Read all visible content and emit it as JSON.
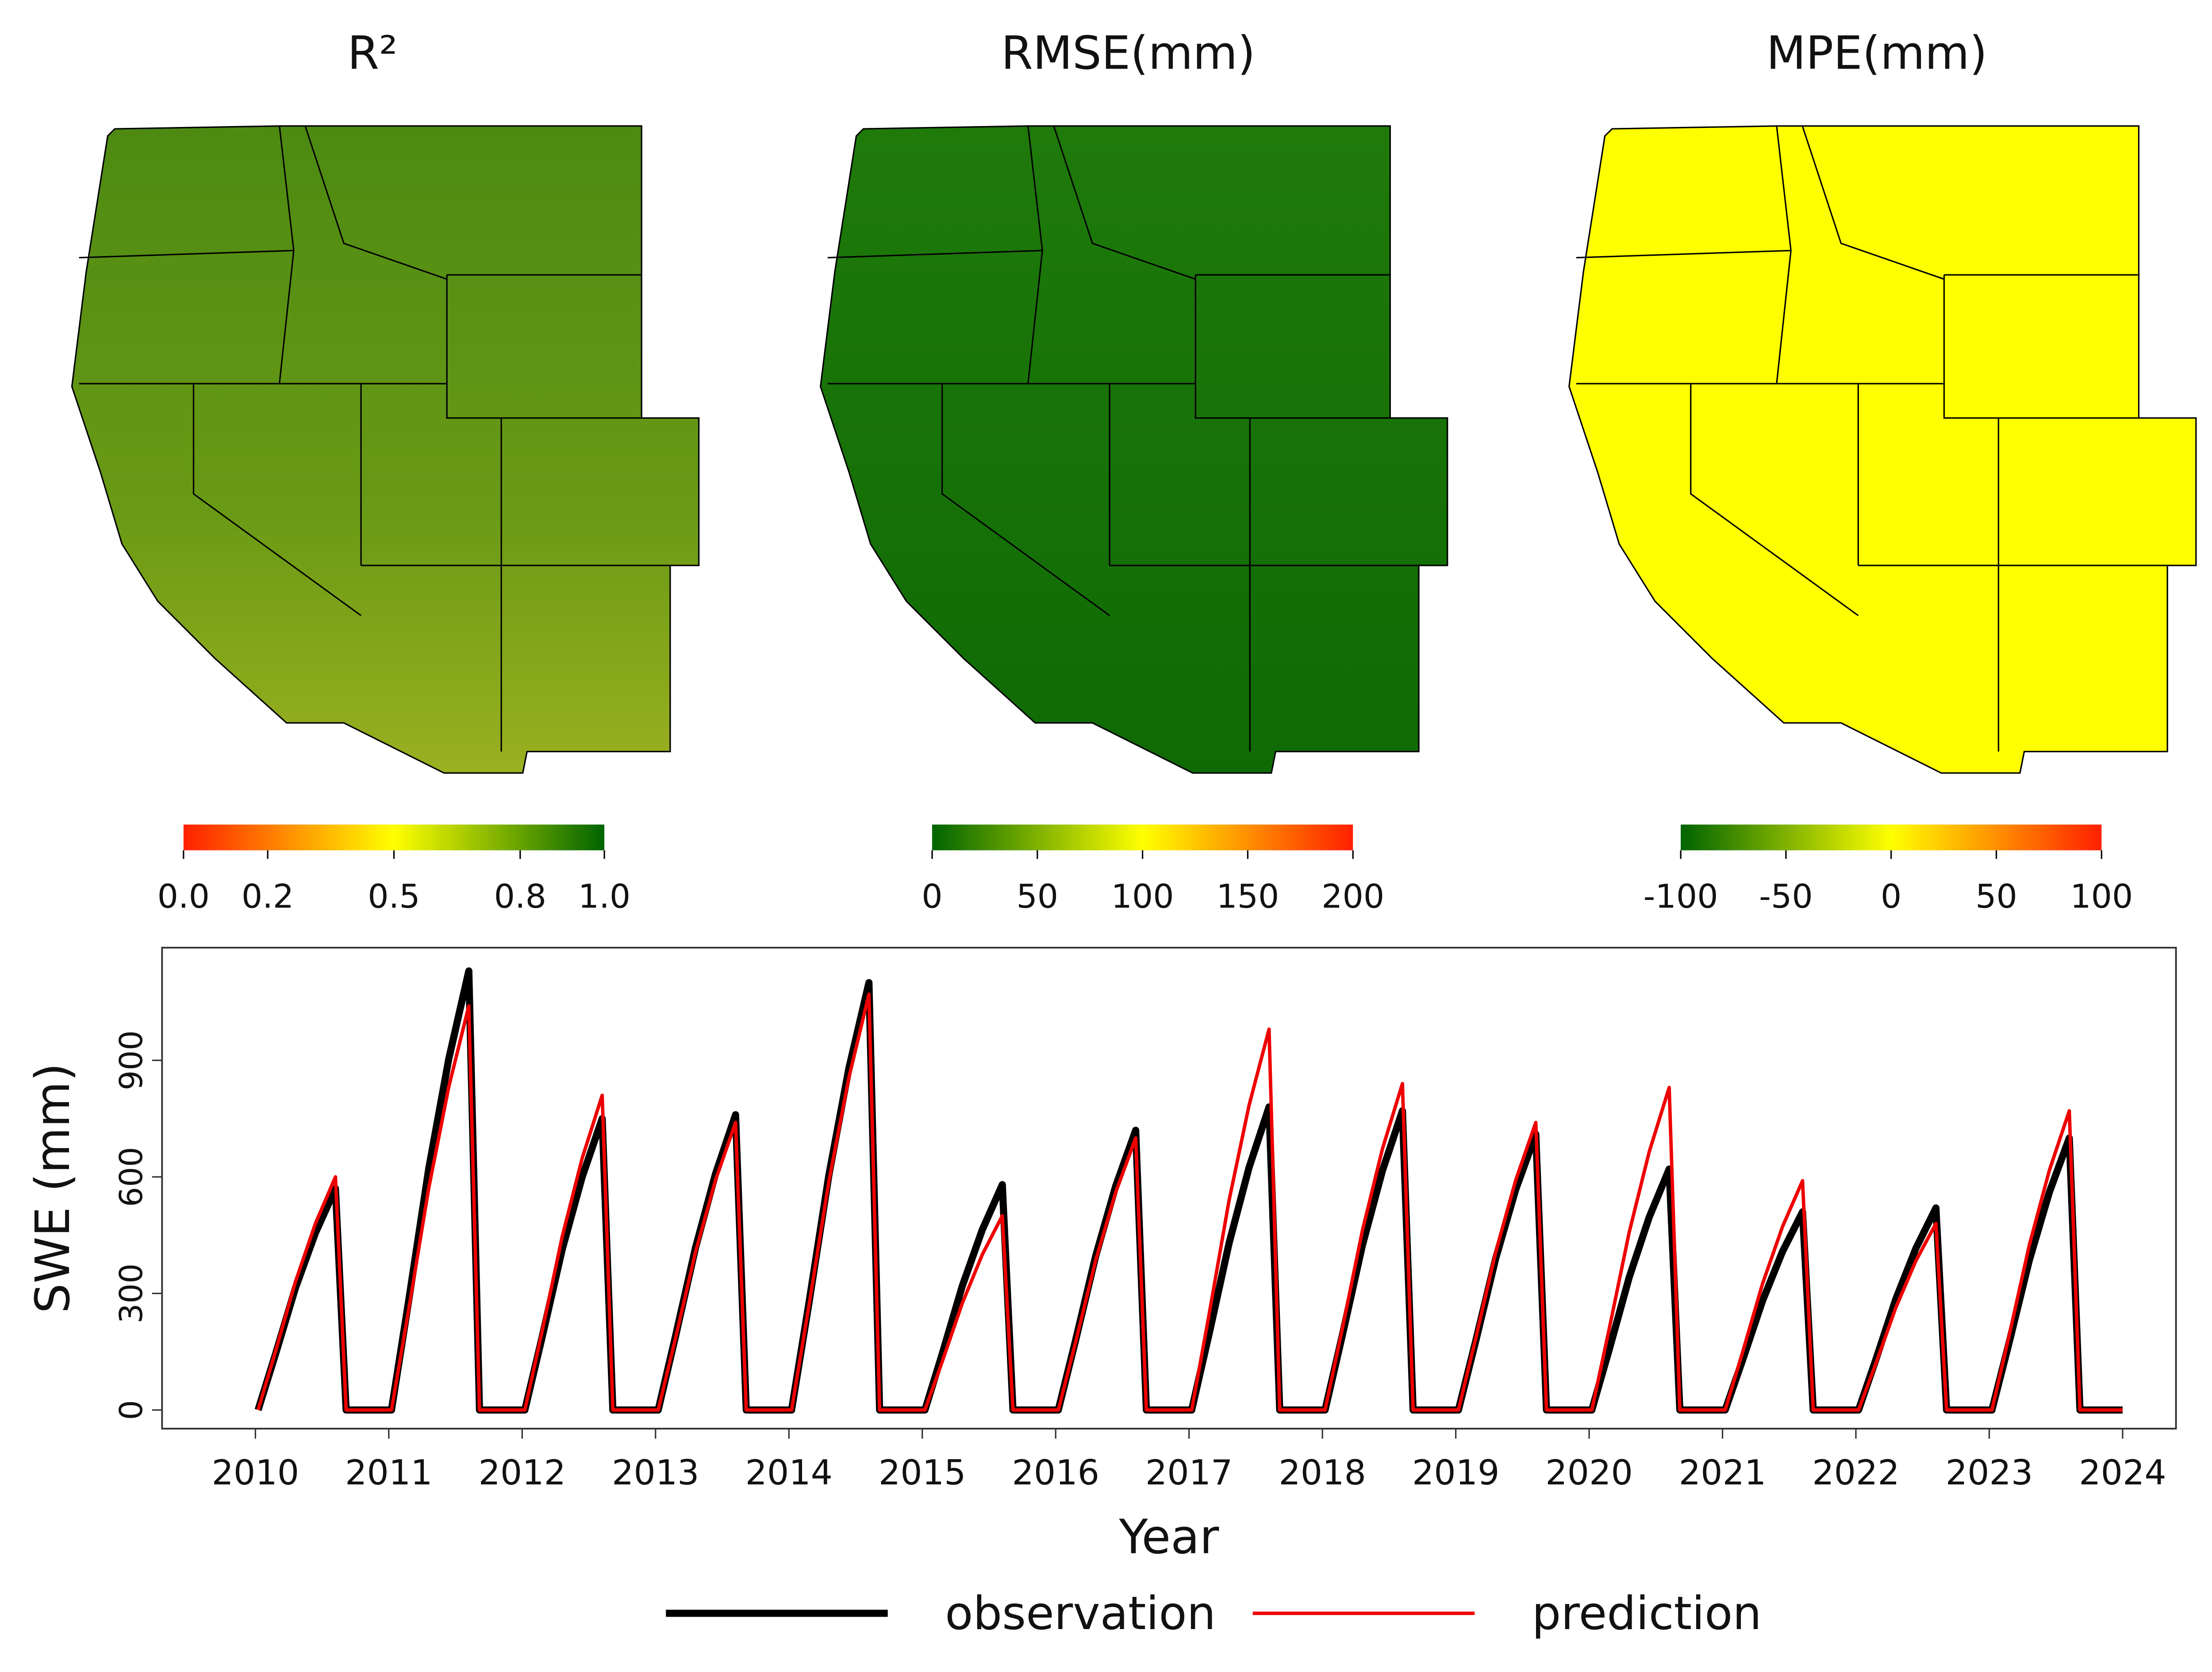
{
  "chart_data": [
    {
      "type": "map",
      "title": "R²",
      "colorbar": {
        "range": [
          0,
          1
        ],
        "colors": [
          "#ff2000",
          "#ffff00",
          "#006400"
        ],
        "ticks": [
          {
            "value": 0,
            "label": "0.0"
          },
          0.2,
          0.5,
          0.8,
          {
            "value": 1,
            "label": "1.0"
          }
        ]
      }
    },
    {
      "type": "map",
      "title": "RMSE(mm)",
      "colorbar": {
        "range": [
          0,
          200
        ],
        "colors": [
          "#006400",
          "#ffff00",
          "#ff2000"
        ],
        "ticks": [
          0,
          50,
          100,
          150,
          200
        ]
      }
    },
    {
      "type": "map",
      "title": "MPE(mm)",
      "colorbar": {
        "range": [
          -100,
          100
        ],
        "colors": [
          "#006400",
          "#ffff00",
          "#ff2000"
        ],
        "ticks": [
          -100,
          -50,
          0,
          50,
          100
        ]
      }
    },
    {
      "type": "line",
      "x_label": "Year",
      "y_label": "SWE (mm)",
      "xlim": [
        2009.3,
        2024.4
      ],
      "ylim": [
        -48,
        1190
      ],
      "xticks": [
        2010,
        2011,
        2012,
        2013,
        2014,
        2015,
        2016,
        2017,
        2018,
        2019,
        2020,
        2021,
        2022,
        2023,
        2024
      ],
      "yticks": [
        0,
        300,
        600,
        900
      ],
      "legend": "bottom",
      "x": [
        2010.02,
        2010.15,
        2010.3,
        2010.45,
        2010.6,
        2010.68,
        2011.02,
        2011.15,
        2011.3,
        2011.45,
        2011.6,
        2011.68,
        2012.02,
        2012.15,
        2012.3,
        2012.45,
        2012.6,
        2012.68,
        2013.02,
        2013.15,
        2013.3,
        2013.45,
        2013.6,
        2013.68,
        2014.02,
        2014.15,
        2014.3,
        2014.45,
        2014.6,
        2014.68,
        2015.02,
        2015.15,
        2015.3,
        2015.45,
        2015.6,
        2015.68,
        2016.02,
        2016.15,
        2016.3,
        2016.45,
        2016.6,
        2016.68,
        2017.02,
        2017.15,
        2017.3,
        2017.45,
        2017.6,
        2017.68,
        2018.02,
        2018.15,
        2018.3,
        2018.45,
        2018.6,
        2018.68,
        2019.02,
        2019.15,
        2019.3,
        2019.45,
        2019.6,
        2019.68,
        2020.02,
        2020.15,
        2020.3,
        2020.45,
        2020.6,
        2020.68,
        2021.02,
        2021.15,
        2021.3,
        2021.45,
        2021.6,
        2021.68,
        2022.02,
        2022.15,
        2022.3,
        2022.45,
        2022.6,
        2022.68,
        2023.02,
        2023.15,
        2023.3,
        2023.45,
        2023.6,
        2023.68,
        2024
      ],
      "series": [
        {
          "name": "observation",
          "color": "#000000",
          "values": [
            0,
            143,
            314,
            456,
            570,
            0,
            0,
            283,
            622,
            904,
            1130,
            0,
            0,
            188,
            413,
            600,
            750,
            0,
            0,
            190,
            418,
            608,
            760,
            0,
            0,
            275,
            605,
            880,
            1100,
            0,
            0,
            145,
            319,
            464,
            580,
            0,
            0,
            180,
            396,
            576,
            720,
            0,
            0,
            195,
            429,
            624,
            780,
            0,
            0,
            193,
            424,
            616,
            770,
            0,
            0,
            178,
            391,
            568,
            710,
            0,
            0,
            155,
            341,
            496,
            620,
            0,
            0,
            128,
            281,
            408,
            510,
            0,
            0,
            130,
            286,
            416,
            520,
            0,
            0,
            175,
            385,
            560,
            700,
            0,
            0
          ]
        },
        {
          "name": "prediction",
          "color": "#ee0000",
          "values": [
            0,
            150,
            330,
            480,
            600,
            0,
            0,
            260,
            572,
            832,
            1040,
            0,
            0,
            203,
            446,
            648,
            810,
            0,
            0,
            185,
            407,
            592,
            740,
            0,
            0,
            268,
            589,
            856,
            1070,
            0,
            0,
            125,
            275,
            400,
            500,
            0,
            0,
            175,
            385,
            560,
            700,
            0,
            0,
            245,
            539,
            784,
            980,
            0,
            0,
            210,
            462,
            672,
            840,
            0,
            0,
            185,
            407,
            592,
            740,
            0,
            0,
            208,
            457,
            664,
            830,
            0,
            0,
            148,
            325,
            472,
            590,
            0,
            0,
            120,
            264,
            384,
            480,
            0,
            0,
            193,
            424,
            616,
            770,
            0,
            0
          ]
        }
      ]
    }
  ]
}
